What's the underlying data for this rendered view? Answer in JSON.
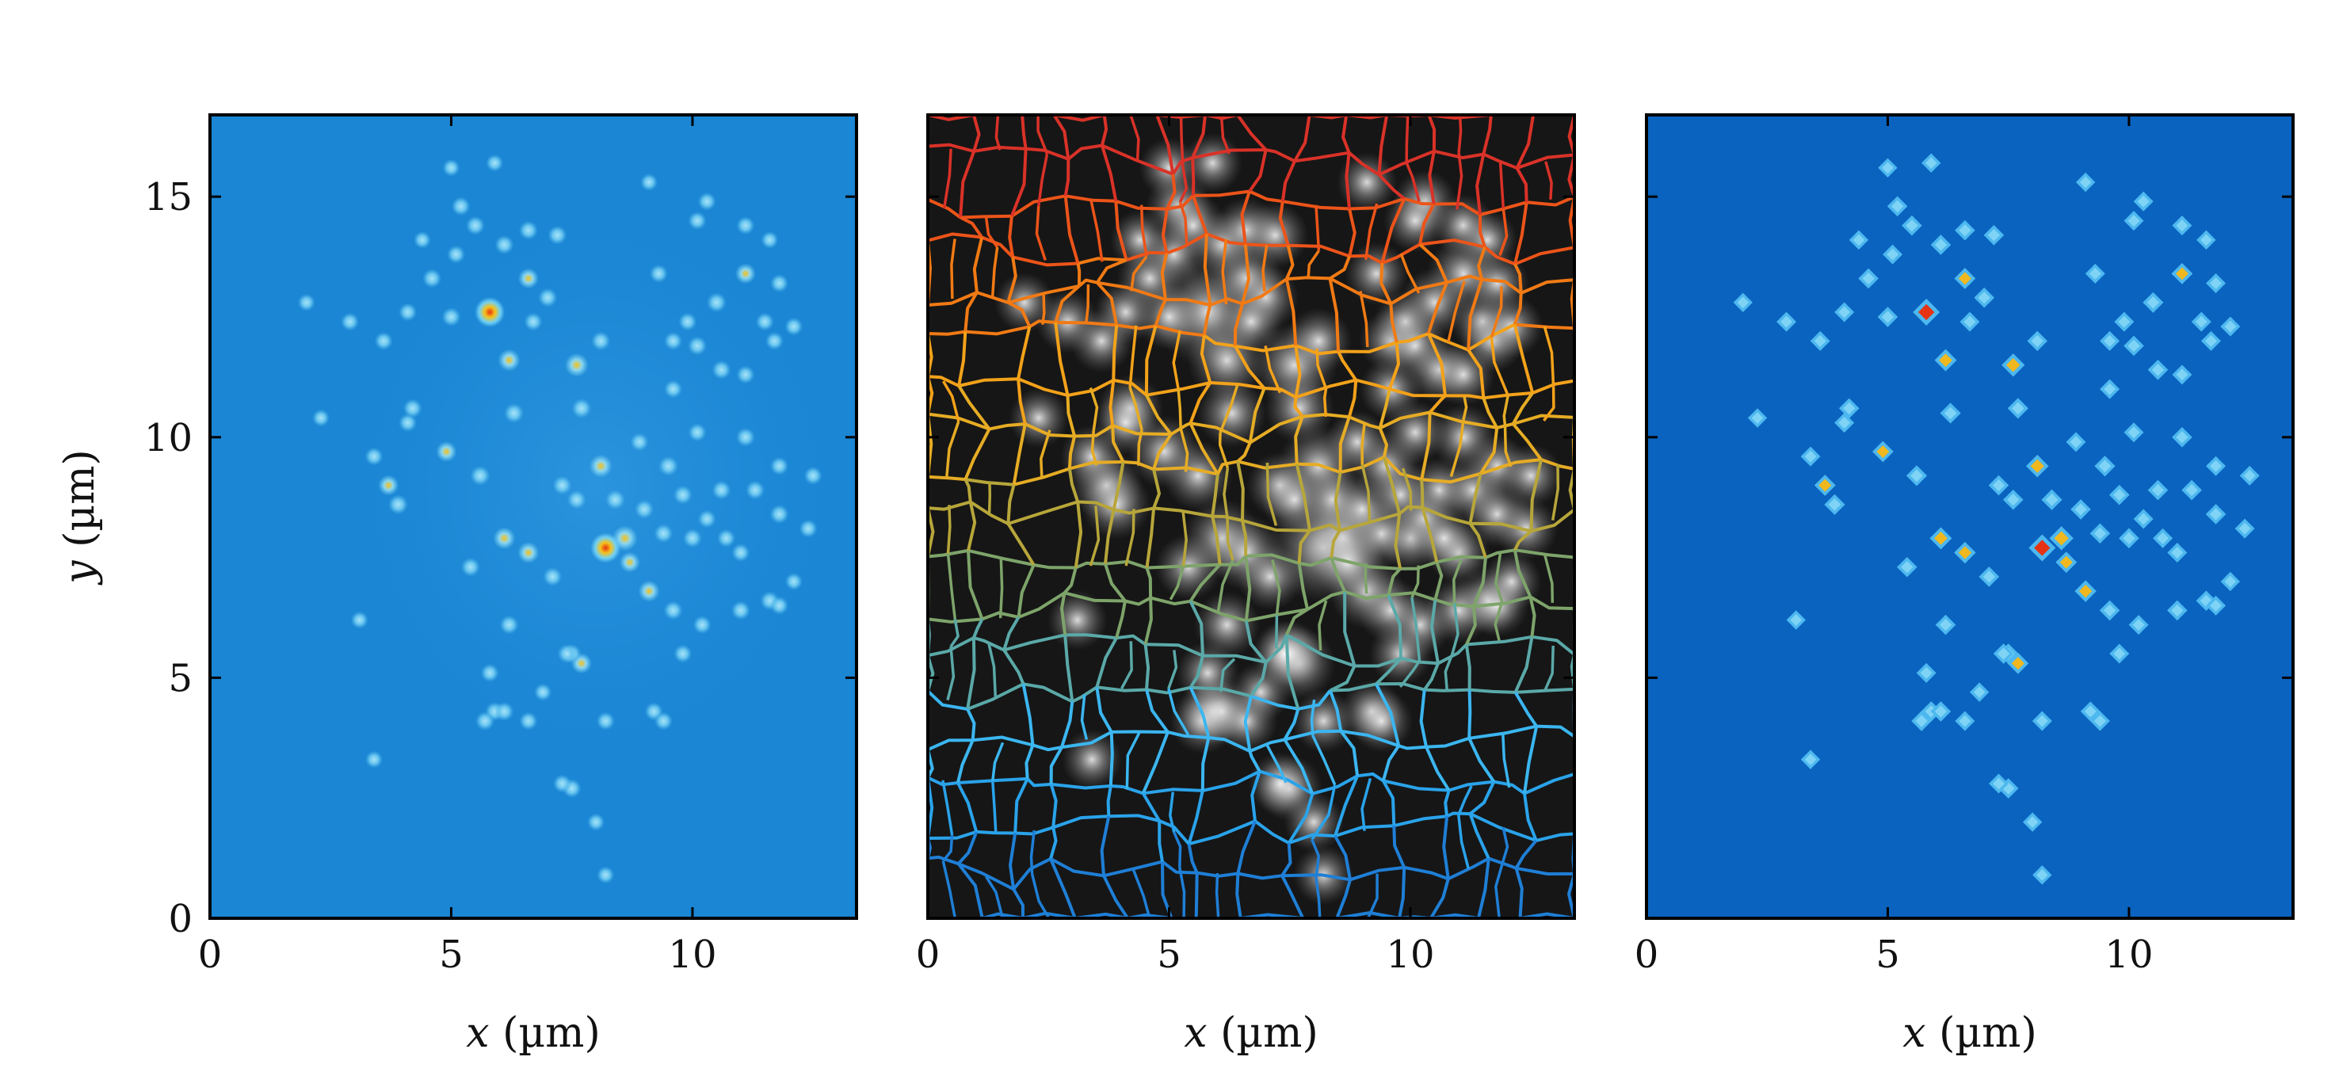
{
  "chart_data": [
    {
      "type": "heatmap",
      "panel": "raw-fluorescence",
      "xlabel_var": "x",
      "xlabel_unit": " (µm)",
      "ylabel_var": "y",
      "ylabel_unit": " (µm)",
      "xlim": [
        0,
        13.4
      ],
      "ylim": [
        0,
        16.7
      ],
      "xticks": [
        "0",
        "5",
        "10"
      ],
      "yticks": [
        "0",
        "5",
        "10",
        "15"
      ],
      "colormap": {
        "background": "#1a86d4",
        "low": "#5cc3f2",
        "mid": "#f5c21c",
        "high": "#e63312"
      },
      "spots": [
        [
          5.8,
          12.6,
          1.0
        ],
        [
          8.2,
          7.7,
          1.0
        ],
        [
          8.6,
          7.9,
          0.7
        ],
        [
          7.6,
          11.5,
          0.6
        ],
        [
          6.2,
          11.6,
          0.5
        ],
        [
          8.1,
          9.4,
          0.55
        ],
        [
          6.1,
          7.9,
          0.5
        ],
        [
          6.6,
          7.6,
          0.45
        ],
        [
          9.1,
          6.8,
          0.45
        ],
        [
          8.7,
          7.4,
          0.4
        ],
        [
          6.6,
          13.3,
          0.4
        ],
        [
          11.1,
          13.4,
          0.4
        ],
        [
          10.5,
          12.8,
          0.35
        ],
        [
          4.9,
          9.7,
          0.4
        ],
        [
          5.6,
          9.2,
          0.35
        ],
        [
          3.7,
          9.0,
          0.4
        ],
        [
          3.9,
          8.6,
          0.35
        ],
        [
          6.3,
          10.5,
          0.35
        ],
        [
          7.7,
          10.6,
          0.35
        ],
        [
          8.1,
          12.0,
          0.3
        ],
        [
          9.5,
          9.4,
          0.35
        ],
        [
          10.0,
          7.9,
          0.3
        ],
        [
          9.4,
          8.0,
          0.3
        ],
        [
          10.6,
          8.9,
          0.3
        ],
        [
          11.3,
          8.9,
          0.3
        ],
        [
          7.3,
          9.0,
          0.3
        ],
        [
          7.6,
          8.7,
          0.3
        ],
        [
          8.4,
          8.7,
          0.35
        ],
        [
          9.0,
          8.5,
          0.3
        ],
        [
          8.9,
          9.9,
          0.25
        ],
        [
          9.8,
          8.8,
          0.3
        ],
        [
          10.3,
          8.3,
          0.25
        ],
        [
          11.0,
          7.6,
          0.25
        ],
        [
          10.7,
          7.9,
          0.25
        ],
        [
          11.8,
          8.4,
          0.3
        ],
        [
          11.6,
          6.6,
          0.3
        ],
        [
          11.0,
          6.4,
          0.3
        ],
        [
          10.2,
          6.1,
          0.25
        ],
        [
          9.6,
          6.4,
          0.3
        ],
        [
          9.8,
          5.5,
          0.25
        ],
        [
          9.2,
          4.3,
          0.25
        ],
        [
          6.2,
          6.1,
          0.3
        ],
        [
          5.4,
          7.3,
          0.3
        ],
        [
          7.7,
          5.3,
          0.4
        ],
        [
          7.5,
          5.5,
          0.3
        ],
        [
          7.1,
          7.1,
          0.3
        ],
        [
          5.9,
          4.3,
          0.3
        ],
        [
          5.7,
          4.1,
          0.3
        ],
        [
          6.1,
          4.3,
          0.3
        ],
        [
          5.8,
          5.1,
          0.25
        ],
        [
          6.6,
          4.1,
          0.25
        ],
        [
          7.5,
          2.7,
          0.3
        ],
        [
          7.3,
          2.8,
          0.25
        ],
        [
          9.4,
          4.1,
          0.25
        ],
        [
          8.2,
          4.1,
          0.25
        ],
        [
          5.2,
          14.8,
          0.3
        ],
        [
          5.5,
          14.4,
          0.3
        ],
        [
          6.1,
          14.0,
          0.3
        ],
        [
          6.6,
          14.3,
          0.3
        ],
        [
          7.2,
          14.2,
          0.3
        ],
        [
          7.0,
          12.9,
          0.3
        ],
        [
          5.0,
          12.5,
          0.3
        ],
        [
          4.6,
          13.3,
          0.3
        ],
        [
          5.1,
          13.8,
          0.25
        ],
        [
          4.1,
          12.6,
          0.25
        ],
        [
          2.9,
          12.4,
          0.25
        ],
        [
          3.6,
          12.0,
          0.25
        ],
        [
          4.2,
          10.6,
          0.3
        ],
        [
          4.1,
          10.3,
          0.25
        ],
        [
          3.4,
          9.6,
          0.25
        ],
        [
          2.3,
          10.4,
          0.2
        ],
        [
          2.0,
          12.8,
          0.2
        ],
        [
          6.7,
          12.4,
          0.25
        ],
        [
          9.3,
          13.4,
          0.25
        ],
        [
          9.6,
          12.0,
          0.25
        ],
        [
          9.9,
          12.4,
          0.25
        ],
        [
          10.1,
          11.9,
          0.3
        ],
        [
          10.6,
          11.4,
          0.3
        ],
        [
          9.6,
          11.0,
          0.25
        ],
        [
          11.1,
          11.3,
          0.25
        ],
        [
          11.5,
          12.4,
          0.25
        ],
        [
          11.7,
          12.0,
          0.25
        ],
        [
          10.1,
          10.1,
          0.25
        ],
        [
          11.1,
          10.0,
          0.3
        ],
        [
          11.8,
          9.4,
          0.25
        ],
        [
          12.5,
          9.2,
          0.25
        ],
        [
          12.4,
          8.1,
          0.25
        ],
        [
          10.3,
          14.9,
          0.25
        ],
        [
          10.1,
          14.5,
          0.25
        ],
        [
          11.1,
          14.4,
          0.25
        ],
        [
          11.8,
          13.2,
          0.25
        ],
        [
          12.1,
          12.3,
          0.25
        ],
        [
          9.1,
          15.3,
          0.2
        ],
        [
          11.6,
          14.1,
          0.2
        ],
        [
          5.9,
          15.7,
          0.2
        ],
        [
          5.0,
          15.6,
          0.2
        ],
        [
          4.4,
          14.1,
          0.2
        ],
        [
          8.0,
          2.0,
          0.2
        ],
        [
          8.2,
          0.9,
          0.2
        ],
        [
          3.4,
          3.3,
          0.2
        ],
        [
          7.4,
          5.5,
          0.3
        ],
        [
          6.9,
          4.7,
          0.2
        ],
        [
          11.8,
          6.5,
          0.25
        ],
        [
          12.1,
          7.0,
          0.2
        ],
        [
          3.1,
          6.2,
          0.2
        ]
      ]
    },
    {
      "type": "heatmap",
      "panel": "segmentation-overlay",
      "xlabel_var": "x",
      "xlabel_unit": " (µm)",
      "xlim": [
        0,
        13.4
      ],
      "ylim": [
        0,
        16.7
      ],
      "xticks": [
        "0",
        "5",
        "10"
      ],
      "boundary_colors": [
        "#1f7fd6",
        "#2aa3ea",
        "#3bb6f0",
        "#5aa9a8",
        "#7ea46a",
        "#b7a63a",
        "#e6ac24",
        "#f3a21a",
        "#f17a14",
        "#ec5419",
        "#d93228"
      ],
      "background": "#161616"
    },
    {
      "type": "heatmap",
      "panel": "fitted-spots",
      "xlabel_var": "x",
      "xlabel_unit": " (µm)",
      "xlim": [
        0,
        13.4
      ],
      "ylim": [
        0,
        16.7
      ],
      "xticks": [
        "0",
        "5",
        "10"
      ],
      "background": "#0a63bf"
    }
  ]
}
